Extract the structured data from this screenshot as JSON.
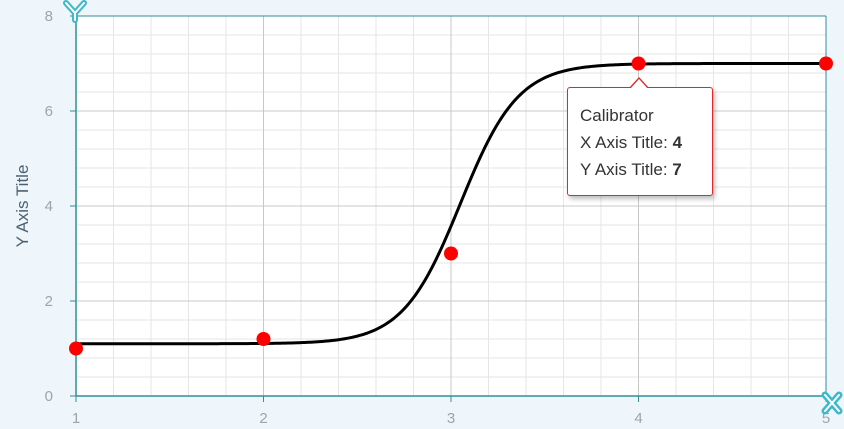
{
  "chart_data": {
    "type": "line",
    "xlabel": "",
    "ylabel": "Y Axis Title",
    "xlim": [
      1,
      5
    ],
    "ylim": [
      0,
      8
    ],
    "x_ticks": [
      "1",
      "2",
      "3",
      "4",
      "5"
    ],
    "y_ticks": [
      "0",
      "2",
      "4",
      "6",
      "8"
    ],
    "grid": true,
    "series": [
      {
        "name": "Calibrator",
        "x": [
          1,
          2,
          3,
          4,
          5
        ],
        "y": [
          1.0,
          1.2,
          3.0,
          7.0,
          7.0
        ],
        "line_color": "#000000",
        "marker_color": "#ff0000"
      }
    ],
    "tooltip": {
      "series_name": "Calibrator",
      "x_label": "X Axis Title:",
      "x_value": "4",
      "y_label": "Y Axis Title:",
      "y_value": "7"
    }
  },
  "icons": {
    "y_axis_badge": "y-letter-icon",
    "x_axis_badge": "x-letter-icon"
  },
  "colors": {
    "background": "#eef6fb",
    "plot_background": "#ffffff",
    "axis": "#2f8f9a",
    "grid_major": "#c8c8c8",
    "grid_minor": "#e6e6e6",
    "badge": "#3fb8c9",
    "accent": "#e02a2a"
  }
}
